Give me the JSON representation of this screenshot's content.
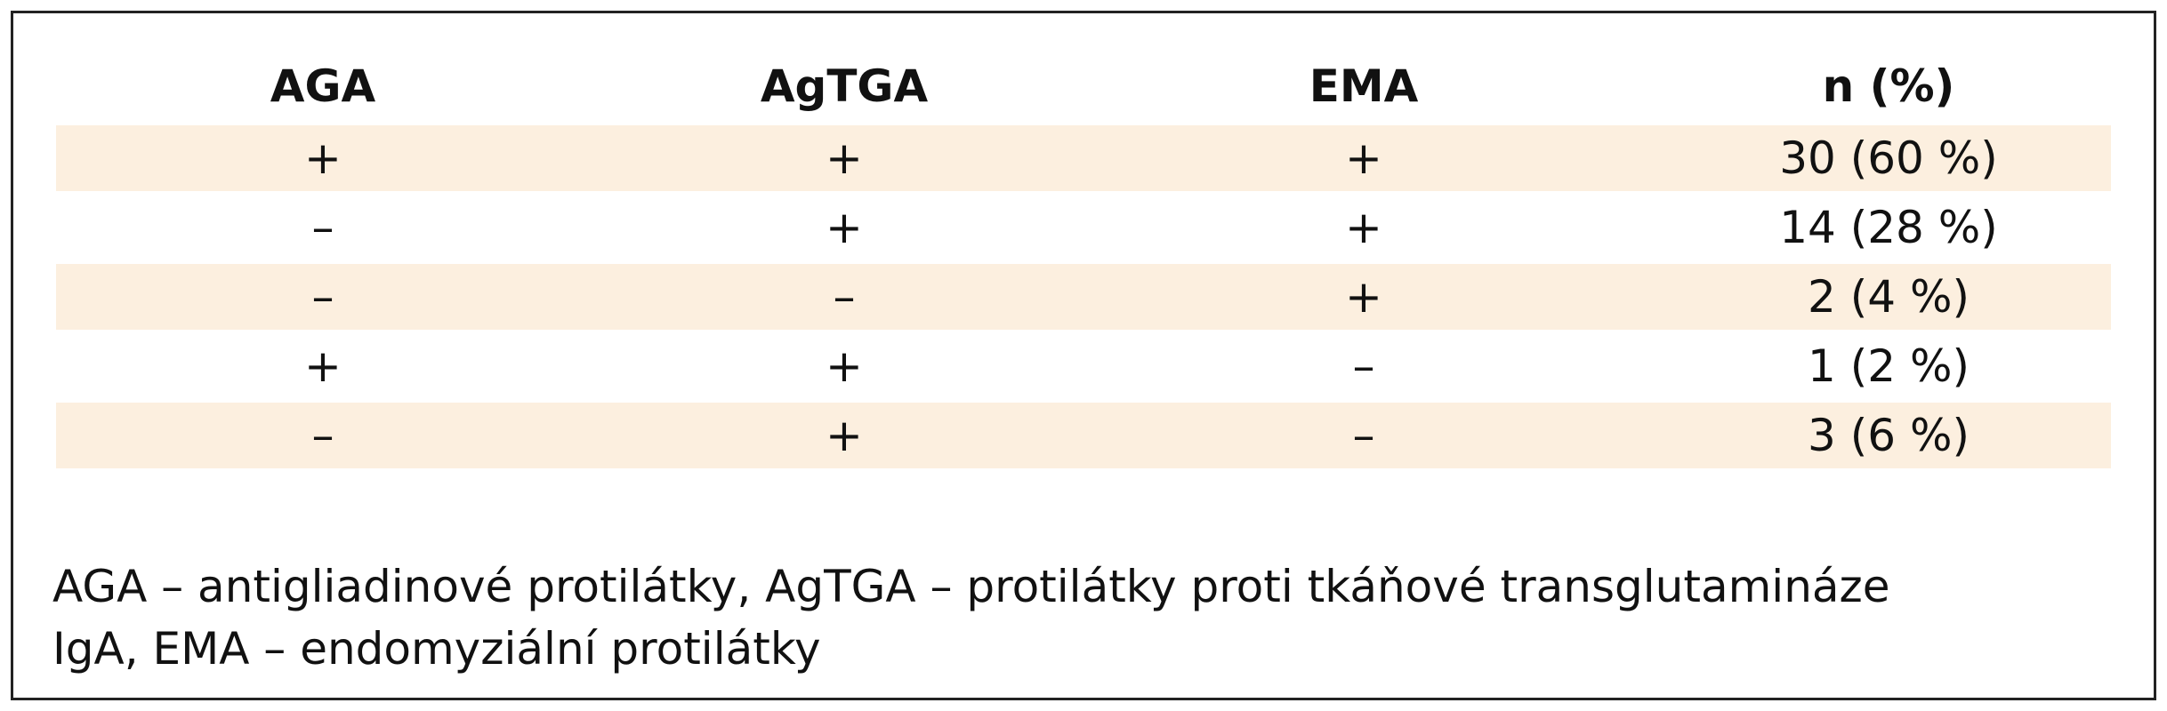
{
  "table": {
    "header": [
      "AGA",
      "AgTGA",
      "EMA",
      "n (%)"
    ],
    "rows": [
      [
        "+",
        "+",
        "+",
        "30 (60 %)"
      ],
      [
        "–",
        "+",
        "+",
        "14 (28 %)"
      ],
      [
        "–",
        "–",
        "+",
        "2 (4 %)"
      ],
      [
        "+",
        "+",
        "–",
        "1 (2 %)"
      ],
      [
        "–",
        "+",
        "–",
        "3 (6 %)"
      ]
    ]
  },
  "footnote": [
    "AGA – antigliadinové protilátky, AgTGA – protilátky proti tkáňové transglutamináze",
    "IgA, EMA – endomyziální protilátky"
  ]
}
